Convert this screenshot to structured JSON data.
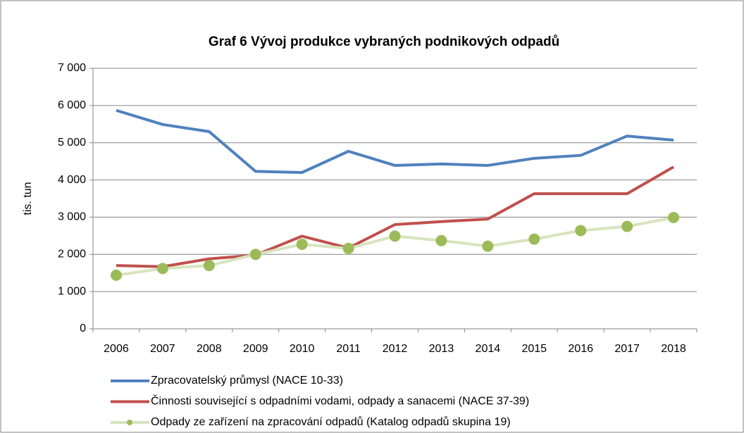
{
  "chart_data": {
    "type": "line",
    "title": "Graf  6 Vývoj produkce vybraných podnikových odpadů",
    "y_label": "tis. tun",
    "categories": [
      "2006",
      "2007",
      "2008",
      "2009",
      "2010",
      "2011",
      "2012",
      "2013",
      "2014",
      "2015",
      "2016",
      "2017",
      "2018"
    ],
    "series": [
      {
        "name": "Zpracovatelský průmysl (NACE 10-33)",
        "color": "#4f81bd",
        "values": [
          5870,
          5490,
          5300,
          4230,
          4200,
          4770,
          4390,
          4430,
          4390,
          4580,
          4660,
          5180,
          5070
        ]
      },
      {
        "name": "Činnosti související s odpadními vodami, odpady a sanacemi (NACE 37-39)",
        "color": "#c0504d",
        "values": [
          1700,
          1670,
          1880,
          1980,
          2490,
          2170,
          2800,
          2880,
          2950,
          3630,
          3630,
          3630,
          4350
        ]
      },
      {
        "name": "Odpady ze zařízení na zpracování odpadů (Katalog odpadů skupina 19)",
        "color": "#d7e4bd",
        "marker_color": "#9bbb59",
        "values": [
          1440,
          1620,
          1700,
          2000,
          2270,
          2160,
          2490,
          2370,
          2220,
          2410,
          2640,
          2750,
          2990
        ]
      }
    ],
    "ylim": [
      0,
      7000
    ],
    "yticks": [
      0,
      {
        "value": 1000,
        "label": "1 000"
      },
      {
        "value": 2000,
        "label": "2 000"
      },
      {
        "value": 3000,
        "label": "3 000"
      },
      {
        "value": 4000,
        "label": "4 000"
      },
      {
        "value": 5000,
        "label": "5 000"
      },
      {
        "value": 6000,
        "label": "6 000"
      },
      {
        "value": 7000,
        "label": "7 000"
      }
    ],
    "grid": true,
    "legend": "bottom"
  }
}
